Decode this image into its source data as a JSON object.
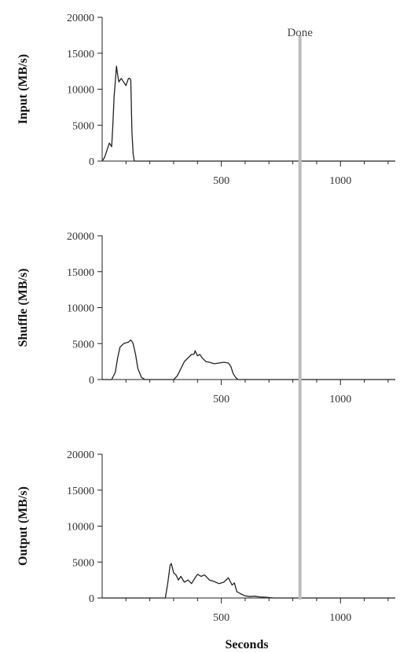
{
  "chart_data": {
    "type": "line",
    "x_label": "Seconds",
    "xlim": [
      0,
      1230
    ],
    "ylim": [
      0,
      20000
    ],
    "x_ticks": [
      500,
      1000
    ],
    "y_ticks": [
      0,
      5000,
      10000,
      15000,
      20000
    ],
    "done_annotation": {
      "label": "Done",
      "x": 830
    },
    "panels": [
      {
        "ylabel": "Input (MB/s)",
        "points": [
          [
            0,
            0
          ],
          [
            10,
            500
          ],
          [
            20,
            1500
          ],
          [
            30,
            2500
          ],
          [
            40,
            2000
          ],
          [
            45,
            5000
          ],
          [
            50,
            9000
          ],
          [
            55,
            11000
          ],
          [
            60,
            13200
          ],
          [
            65,
            12000
          ],
          [
            70,
            11000
          ],
          [
            80,
            11500
          ],
          [
            90,
            11000
          ],
          [
            100,
            10500
          ],
          [
            110,
            11500
          ],
          [
            115,
            11500
          ],
          [
            120,
            11300
          ],
          [
            125,
            4000
          ],
          [
            130,
            1000
          ],
          [
            135,
            0
          ],
          [
            1230,
            0
          ]
        ]
      },
      {
        "ylabel": "Shuffle (MB/s)",
        "points": [
          [
            0,
            0
          ],
          [
            40,
            0
          ],
          [
            55,
            1000
          ],
          [
            65,
            3000
          ],
          [
            75,
            4500
          ],
          [
            90,
            5000
          ],
          [
            110,
            5200
          ],
          [
            120,
            5500
          ],
          [
            125,
            5300
          ],
          [
            130,
            5000
          ],
          [
            140,
            3500
          ],
          [
            150,
            1500
          ],
          [
            165,
            300
          ],
          [
            180,
            0
          ],
          [
            300,
            0
          ],
          [
            315,
            500
          ],
          [
            330,
            1500
          ],
          [
            345,
            2500
          ],
          [
            360,
            3000
          ],
          [
            375,
            3500
          ],
          [
            385,
            3500
          ],
          [
            390,
            4000
          ],
          [
            400,
            3300
          ],
          [
            410,
            3500
          ],
          [
            420,
            3000
          ],
          [
            435,
            2500
          ],
          [
            450,
            2400
          ],
          [
            470,
            2200
          ],
          [
            490,
            2300
          ],
          [
            510,
            2400
          ],
          [
            530,
            2300
          ],
          [
            540,
            1800
          ],
          [
            550,
            800
          ],
          [
            560,
            300
          ],
          [
            570,
            0
          ],
          [
            1230,
            0
          ]
        ]
      },
      {
        "ylabel": "Output (MB/s)",
        "points": [
          [
            0,
            0
          ],
          [
            265,
            0
          ],
          [
            275,
            2000
          ],
          [
            285,
            4500
          ],
          [
            290,
            4800
          ],
          [
            300,
            3500
          ],
          [
            310,
            3200
          ],
          [
            320,
            2500
          ],
          [
            330,
            3000
          ],
          [
            345,
            2200
          ],
          [
            360,
            2500
          ],
          [
            375,
            2000
          ],
          [
            390,
            2800
          ],
          [
            400,
            3300
          ],
          [
            415,
            3000
          ],
          [
            430,
            3200
          ],
          [
            450,
            2500
          ],
          [
            470,
            2300
          ],
          [
            490,
            2000
          ],
          [
            510,
            2200
          ],
          [
            520,
            2500
          ],
          [
            530,
            2800
          ],
          [
            545,
            1800
          ],
          [
            555,
            2100
          ],
          [
            565,
            900
          ],
          [
            580,
            600
          ],
          [
            600,
            300
          ],
          [
            620,
            200
          ],
          [
            640,
            250
          ],
          [
            660,
            150
          ],
          [
            690,
            100
          ],
          [
            720,
            0
          ],
          [
            1230,
            0
          ]
        ]
      }
    ]
  }
}
